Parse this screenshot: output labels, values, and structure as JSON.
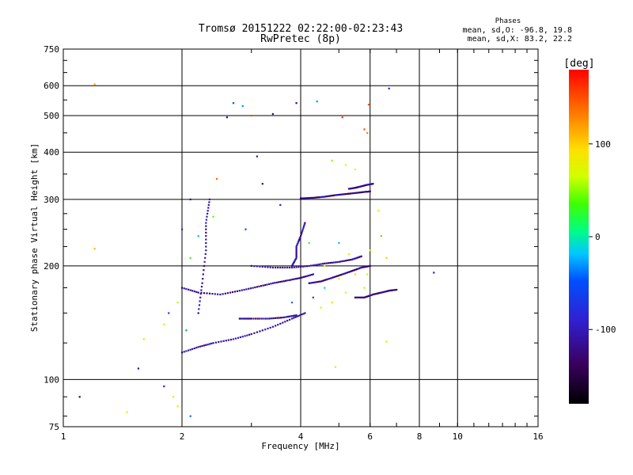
{
  "chart_data": {
    "type": "scatter",
    "title": "Tromsø 20151222 02:22:00-02:23:43",
    "subtitle": "RwPretec (8p)",
    "xlabel": "Frequency [MHz]",
    "ylabel": "Stationary phase Virtual Height [km]",
    "x_scale": "log",
    "y_scale": "log",
    "xlim": [
      1,
      16
    ],
    "ylim": [
      75,
      750
    ],
    "x_ticks": [
      1,
      2,
      4,
      6,
      8,
      10,
      16
    ],
    "x_tick_labels": [
      "1",
      "2",
      "4",
      "6",
      "8",
      "10",
      "16"
    ],
    "y_ticks": [
      75,
      100,
      200,
      300,
      400,
      500,
      600,
      750
    ],
    "y_tick_labels": [
      "75",
      "100",
      "200",
      "300",
      "400",
      "500",
      "600",
      "750"
    ],
    "grid": true,
    "colorbar": {
      "label": "[deg]",
      "range": [
        -180,
        180
      ],
      "tick_values": [
        100,
        0,
        -100
      ],
      "tick_labels": [
        "100",
        "0",
        "-100"
      ]
    },
    "stats": {
      "heading": "Phases",
      "line1": "mean, sd,O: -96.8, 19.8",
      "line2": "mean, sd,X:  83.2, 22.2"
    },
    "traces": [
      {
        "x": [
          2.0,
          2.2,
          2.5,
          2.8,
          3.1,
          3.4,
          3.7,
          4.0,
          4.3
        ],
        "y": [
          175,
          170,
          168,
          172,
          176,
          180,
          183,
          186,
          190
        ],
        "phase": -120
      },
      {
        "x": [
          2.8,
          3.0,
          3.3,
          3.6,
          3.9
        ],
        "y": [
          145,
          145,
          145,
          146,
          148
        ],
        "phase": -120
      },
      {
        "x": [
          2.0,
          2.2,
          2.4,
          2.7,
          3.0,
          3.4,
          3.8,
          4.1
        ],
        "y": [
          118,
          122,
          125,
          128,
          132,
          138,
          145,
          150
        ],
        "phase": -110
      },
      {
        "x": [
          3.0,
          3.4,
          3.8,
          4.2,
          4.6,
          5.0,
          5.4,
          5.7
        ],
        "y": [
          200,
          198,
          198,
          200,
          203,
          205,
          208,
          212
        ],
        "phase": -115
      },
      {
        "x": [
          4.2,
          4.5,
          4.8,
          5.1,
          5.4,
          5.7,
          6.0
        ],
        "y": [
          180,
          182,
          186,
          190,
          194,
          198,
          200
        ],
        "phase": -120
      },
      {
        "x": [
          4.0,
          4.3,
          4.6,
          4.9,
          5.2,
          5.5,
          5.8,
          6.0
        ],
        "y": [
          302,
          303,
          305,
          308,
          310,
          312,
          314,
          315
        ],
        "phase": -125
      },
      {
        "x": [
          5.3,
          5.5,
          5.7,
          5.9,
          6.1
        ],
        "y": [
          320,
          322,
          325,
          328,
          330
        ],
        "phase": -120
      },
      {
        "x": [
          4.1,
          4.0,
          3.9,
          3.9,
          3.8
        ],
        "y": [
          260,
          240,
          225,
          210,
          200
        ],
        "phase": -110
      },
      {
        "x": [
          2.2,
          2.25,
          2.3,
          2.3,
          2.35
        ],
        "y": [
          150,
          180,
          220,
          260,
          300
        ],
        "phase": -110
      },
      {
        "x": [
          5.5,
          5.8,
          6.1,
          6.4,
          6.7,
          7.0
        ],
        "y": [
          165,
          165,
          168,
          170,
          172,
          173
        ],
        "phase": -125
      }
    ],
    "points": [
      {
        "x": 1.1,
        "y": 90,
        "phase": -140
      },
      {
        "x": 1.2,
        "y": 605,
        "phase": 120
      },
      {
        "x": 1.2,
        "y": 222,
        "phase": 110
      },
      {
        "x": 1.45,
        "y": 82,
        "phase": 80
      },
      {
        "x": 1.55,
        "y": 107,
        "phase": -120
      },
      {
        "x": 1.6,
        "y": 128,
        "phase": 60
      },
      {
        "x": 1.8,
        "y": 96,
        "phase": -100
      },
      {
        "x": 1.9,
        "y": 90,
        "phase": 90
      },
      {
        "x": 1.95,
        "y": 85,
        "phase": 80
      },
      {
        "x": 2.1,
        "y": 80,
        "phase": -40
      },
      {
        "x": 2.6,
        "y": 495,
        "phase": -130
      },
      {
        "x": 2.7,
        "y": 540,
        "phase": -50
      },
      {
        "x": 2.85,
        "y": 530,
        "phase": -30
      },
      {
        "x": 3.0,
        "y": 500,
        "phase": 150
      },
      {
        "x": 3.4,
        "y": 505,
        "phase": -120
      },
      {
        "x": 3.9,
        "y": 540,
        "phase": -130
      },
      {
        "x": 4.4,
        "y": 545,
        "phase": -30
      },
      {
        "x": 5.1,
        "y": 495,
        "phase": 160
      },
      {
        "x": 5.8,
        "y": 460,
        "phase": 150
      },
      {
        "x": 5.9,
        "y": 450,
        "phase": 130
      },
      {
        "x": 5.95,
        "y": 535,
        "phase": 145
      },
      {
        "x": 6.7,
        "y": 590,
        "phase": -90
      },
      {
        "x": 5.5,
        "y": 360,
        "phase": 80
      },
      {
        "x": 5.2,
        "y": 370,
        "phase": 70
      },
      {
        "x": 4.8,
        "y": 380,
        "phase": 50
      },
      {
        "x": 6.3,
        "y": 280,
        "phase": 80
      },
      {
        "x": 6.6,
        "y": 210,
        "phase": 100
      },
      {
        "x": 6.4,
        "y": 240,
        "phase": 120
      },
      {
        "x": 4.5,
        "y": 155,
        "phase": 80
      },
      {
        "x": 4.8,
        "y": 160,
        "phase": 90
      },
      {
        "x": 5.2,
        "y": 170,
        "phase": 70
      },
      {
        "x": 5.8,
        "y": 175,
        "phase": 60
      },
      {
        "x": 5.0,
        "y": 185,
        "phase": 90
      },
      {
        "x": 5.5,
        "y": 190,
        "phase": 100
      },
      {
        "x": 5.9,
        "y": 190,
        "phase": 80
      },
      {
        "x": 4.6,
        "y": 200,
        "phase": 70
      },
      {
        "x": 5.3,
        "y": 215,
        "phase": 85
      },
      {
        "x": 6.0,
        "y": 220,
        "phase": 60
      },
      {
        "x": 8.7,
        "y": 192,
        "phase": -100
      },
      {
        "x": 6.6,
        "y": 126,
        "phase": 60
      },
      {
        "x": 4.9,
        "y": 108,
        "phase": 90
      },
      {
        "x": 2.0,
        "y": 250,
        "phase": -70
      },
      {
        "x": 2.1,
        "y": 300,
        "phase": -110
      },
      {
        "x": 2.45,
        "y": 340,
        "phase": 140
      },
      {
        "x": 3.2,
        "y": 330,
        "phase": -130
      },
      {
        "x": 3.1,
        "y": 390,
        "phase": -110
      },
      {
        "x": 3.55,
        "y": 290,
        "phase": -100
      },
      {
        "x": 2.4,
        "y": 270,
        "phase": 40
      },
      {
        "x": 2.1,
        "y": 210,
        "phase": 30
      },
      {
        "x": 2.2,
        "y": 240,
        "phase": -20
      },
      {
        "x": 2.9,
        "y": 250,
        "phase": -50
      },
      {
        "x": 1.8,
        "y": 140,
        "phase": 70
      },
      {
        "x": 1.85,
        "y": 150,
        "phase": -60
      },
      {
        "x": 1.95,
        "y": 160,
        "phase": 60
      },
      {
        "x": 2.05,
        "y": 135,
        "phase": -30
      },
      {
        "x": 3.8,
        "y": 160,
        "phase": -40
      },
      {
        "x": 4.3,
        "y": 165,
        "phase": -60
      },
      {
        "x": 4.6,
        "y": 175,
        "phase": -10
      },
      {
        "x": 5.0,
        "y": 230,
        "phase": -20
      },
      {
        "x": 4.2,
        "y": 230,
        "phase": 30
      }
    ]
  }
}
